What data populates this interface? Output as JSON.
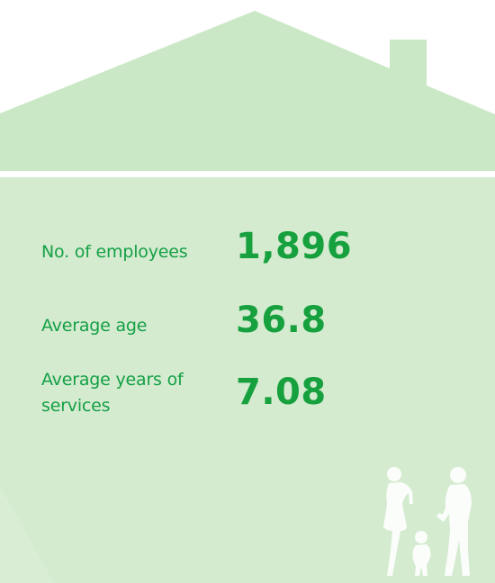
{
  "stats": [
    {
      "label": "No. of employees",
      "value": "1,896"
    },
    {
      "label": "Average age",
      "value": "36.8"
    },
    {
      "label": "Average years of services",
      "value": "7.08"
    }
  ],
  "colors": {
    "roof": "#cbe8c6",
    "body": "#d5ecd0",
    "text": "#15a046",
    "silhouette": "#ffffff"
  },
  "icons": [
    "family-silhouette-icon"
  ]
}
